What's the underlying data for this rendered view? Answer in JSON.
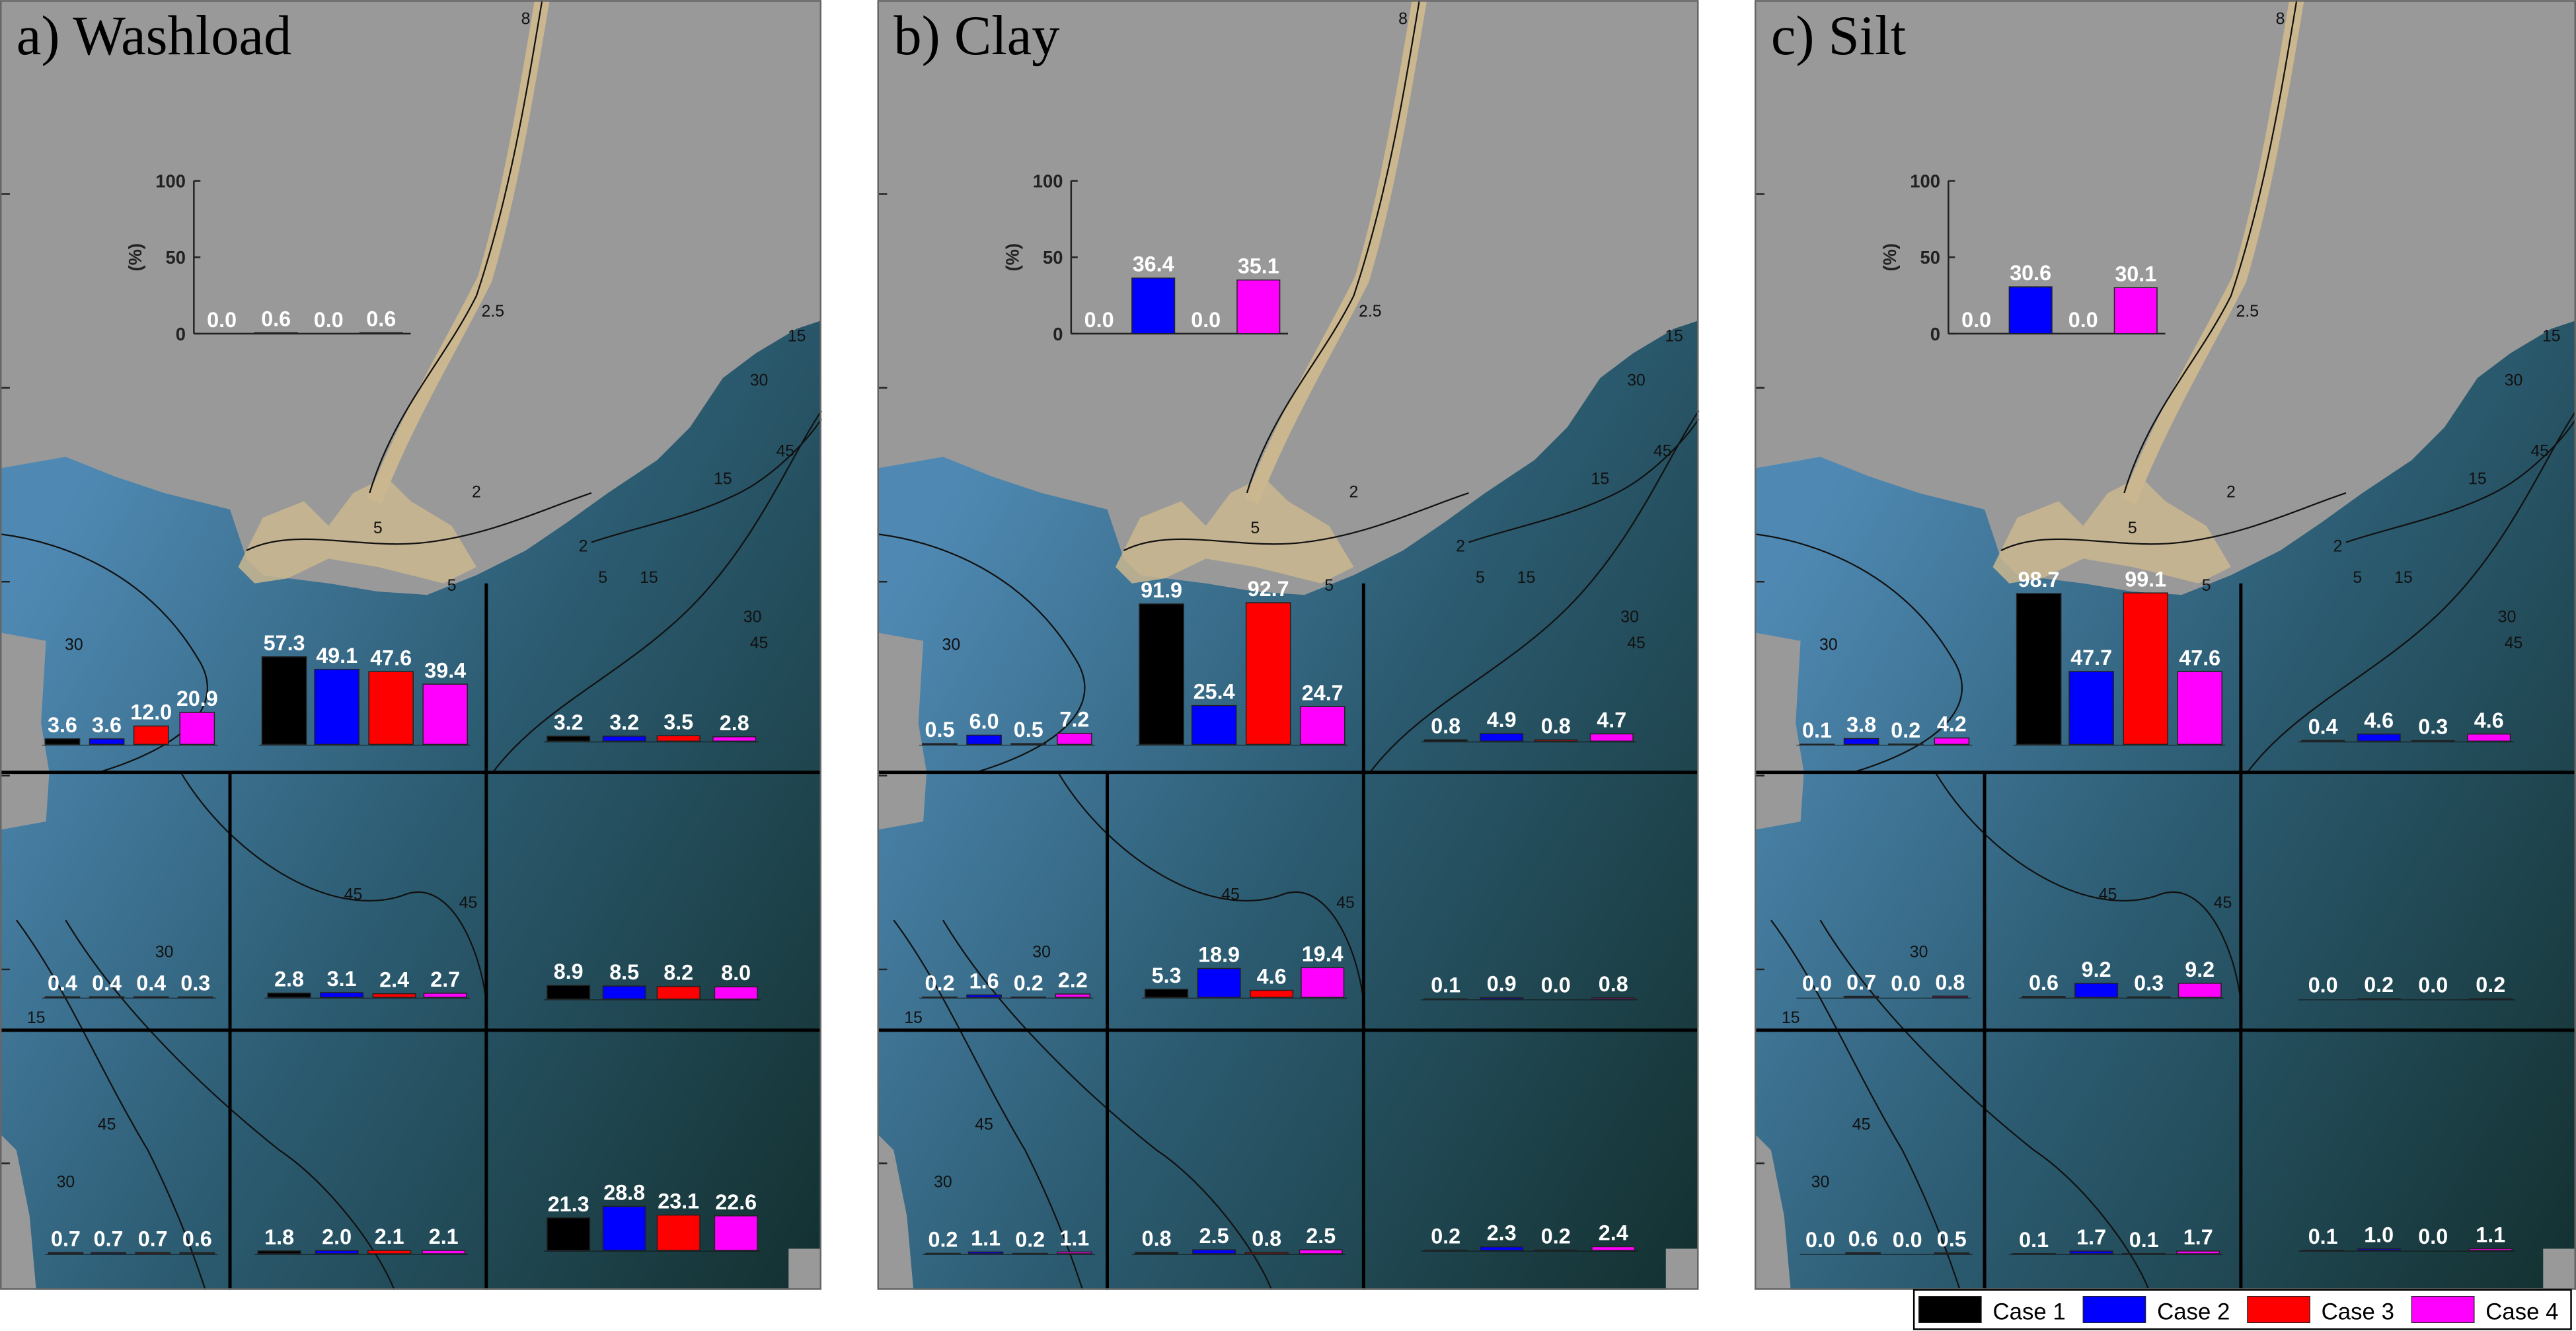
{
  "legend": [
    {
      "name": "Case 1",
      "color": "#000000"
    },
    {
      "name": "Case 2",
      "color": "#0000ff"
    },
    {
      "name": "Case 3",
      "color": "#ff0000"
    },
    {
      "name": "Case 4",
      "color": "#ff00ff"
    }
  ],
  "map": {
    "contour_labels": [
      "30",
      "15",
      "30",
      "45",
      "45",
      "45",
      "30",
      "2",
      "5",
      "15",
      "30",
      "45",
      "15",
      "30",
      "45",
      "15",
      "2.5",
      "8",
      "5",
      "2",
      "5"
    ]
  },
  "chart_data": [
    {
      "type": "bar",
      "title": "a) Washload",
      "ylabel": "(%)",
      "ylim": [
        0,
        100
      ],
      "yticks": [
        0,
        50,
        100
      ],
      "groups": [
        {
          "values": [
            0,
            0.6,
            0,
            0.6
          ],
          "value_labels": [
            "0.0",
            "0.6",
            "0.0",
            "0.6"
          ]
        },
        {
          "values": [
            3.6,
            3.6,
            12,
            20.9
          ],
          "value_labels": [
            "3.6",
            "3.6",
            "12.0",
            "20.9"
          ]
        },
        {
          "values": [
            57.3,
            49.1,
            47.6,
            39.4
          ],
          "value_labels": [
            "57.3",
            "49.1",
            "47.6",
            "39.4"
          ]
        },
        {
          "values": [
            3.2,
            3.2,
            3.5,
            2.8
          ],
          "value_labels": [
            "3.2",
            "3.2",
            "3.5",
            "2.8"
          ]
        },
        {
          "values": [
            0.4,
            0.4,
            0.4,
            0.3
          ],
          "value_labels": [
            "0.4",
            "0.4",
            "0.4",
            "0.3"
          ]
        },
        {
          "values": [
            2.8,
            3.1,
            2.4,
            2.7
          ],
          "value_labels": [
            "2.8",
            "3.1",
            "2.4",
            "2.7"
          ]
        },
        {
          "values": [
            8.9,
            8.5,
            8.2,
            8
          ],
          "value_labels": [
            "8.9",
            "8.5",
            "8.2",
            "8.0"
          ]
        },
        {
          "values": [
            0.7,
            0.7,
            0.7,
            0.6
          ],
          "value_labels": [
            "0.7",
            "0.7",
            "0.7",
            "0.6"
          ]
        },
        {
          "values": [
            1.8,
            2,
            2.1,
            2.1
          ],
          "value_labels": [
            "1.8",
            "2.0",
            "2.1",
            "2.1"
          ]
        },
        {
          "values": [
            21.3,
            28.8,
            23.1,
            22.6
          ],
          "value_labels": [
            "21.3",
            "28.8",
            "23.1",
            "22.6"
          ]
        }
      ]
    },
    {
      "type": "bar",
      "title": "b) Clay",
      "ylabel": "(%)",
      "ylim": [
        0,
        100
      ],
      "yticks": [
        0,
        50,
        100
      ],
      "groups": [
        {
          "values": [
            0,
            36.4,
            0,
            35.1
          ],
          "value_labels": [
            "0.0",
            "36.4",
            "0.0",
            "35.1"
          ]
        },
        {
          "values": [
            0.5,
            6,
            0.5,
            7.2
          ],
          "value_labels": [
            "0.5",
            "6.0",
            "0.5",
            "7.2"
          ]
        },
        {
          "values": [
            91.9,
            25.4,
            92.7,
            24.7
          ],
          "value_labels": [
            "91.9",
            "25.4",
            "92.7",
            "24.7"
          ]
        },
        {
          "values": [
            0.8,
            4.9,
            0.8,
            4.7
          ],
          "value_labels": [
            "0.8",
            "4.9",
            "0.8",
            "4.7"
          ]
        },
        {
          "values": [
            0.2,
            1.6,
            0.2,
            2.2
          ],
          "value_labels": [
            "0.2",
            "1.6",
            "0.2",
            "2.2"
          ]
        },
        {
          "values": [
            5.3,
            18.9,
            4.6,
            19.4
          ],
          "value_labels": [
            "5.3",
            "18.9",
            "4.6",
            "19.4"
          ]
        },
        {
          "values": [
            0.1,
            0.9,
            0,
            0.8
          ],
          "value_labels": [
            "0.1",
            "0.9",
            "0.0",
            "0.8"
          ]
        },
        {
          "values": [
            0.2,
            1.1,
            0.2,
            1.1
          ],
          "value_labels": [
            "0.2",
            "1.1",
            "0.2",
            "1.1"
          ]
        },
        {
          "values": [
            0.8,
            2.5,
            0.8,
            2.5
          ],
          "value_labels": [
            "0.8",
            "2.5",
            "0.8",
            "2.5"
          ]
        },
        {
          "values": [
            0.2,
            2.3,
            0.2,
            2.4
          ],
          "value_labels": [
            "0.2",
            "2.3",
            "0.2",
            "2.4"
          ]
        }
      ]
    },
    {
      "type": "bar",
      "title": "c) Silt",
      "ylabel": "(%)",
      "ylim": [
        0,
        100
      ],
      "yticks": [
        0,
        50,
        100
      ],
      "groups": [
        {
          "values": [
            0,
            30.6,
            0,
            30.1
          ],
          "value_labels": [
            "0.0",
            "30.6",
            "0.0",
            "30.1"
          ]
        },
        {
          "values": [
            0.1,
            3.8,
            0.2,
            4.2
          ],
          "value_labels": [
            "0.1",
            "3.8",
            "0.2",
            "4.2"
          ]
        },
        {
          "values": [
            98.7,
            47.7,
            99.1,
            47.6
          ],
          "value_labels": [
            "98.7",
            "47.7",
            "99.1",
            "47.6"
          ]
        },
        {
          "values": [
            0.4,
            4.6,
            0.3,
            4.6
          ],
          "value_labels": [
            "0.4",
            "4.6",
            "0.3",
            "4.6"
          ]
        },
        {
          "values": [
            0,
            0.7,
            0,
            0.8
          ],
          "value_labels": [
            "0.0",
            "0.7",
            "0.0",
            "0.8"
          ]
        },
        {
          "values": [
            0.6,
            9.2,
            0.3,
            9.2
          ],
          "value_labels": [
            "0.6",
            "9.2",
            "0.3",
            "9.2"
          ]
        },
        {
          "values": [
            0,
            0.2,
            0,
            0.2
          ],
          "value_labels": [
            "0.0",
            "0.2",
            "0.0",
            "0.2"
          ]
        },
        {
          "values": [
            0,
            0.6,
            0,
            0.5
          ],
          "value_labels": [
            "0.0",
            "0.6",
            "0.0",
            "0.5"
          ]
        },
        {
          "values": [
            0.1,
            1.7,
            0.1,
            1.7
          ],
          "value_labels": [
            "0.1",
            "1.7",
            "0.1",
            "1.7"
          ]
        },
        {
          "values": [
            0.1,
            1,
            0,
            1.1
          ],
          "value_labels": [
            "0.1",
            "1.0",
            "0.0",
            "1.1"
          ]
        }
      ]
    }
  ]
}
